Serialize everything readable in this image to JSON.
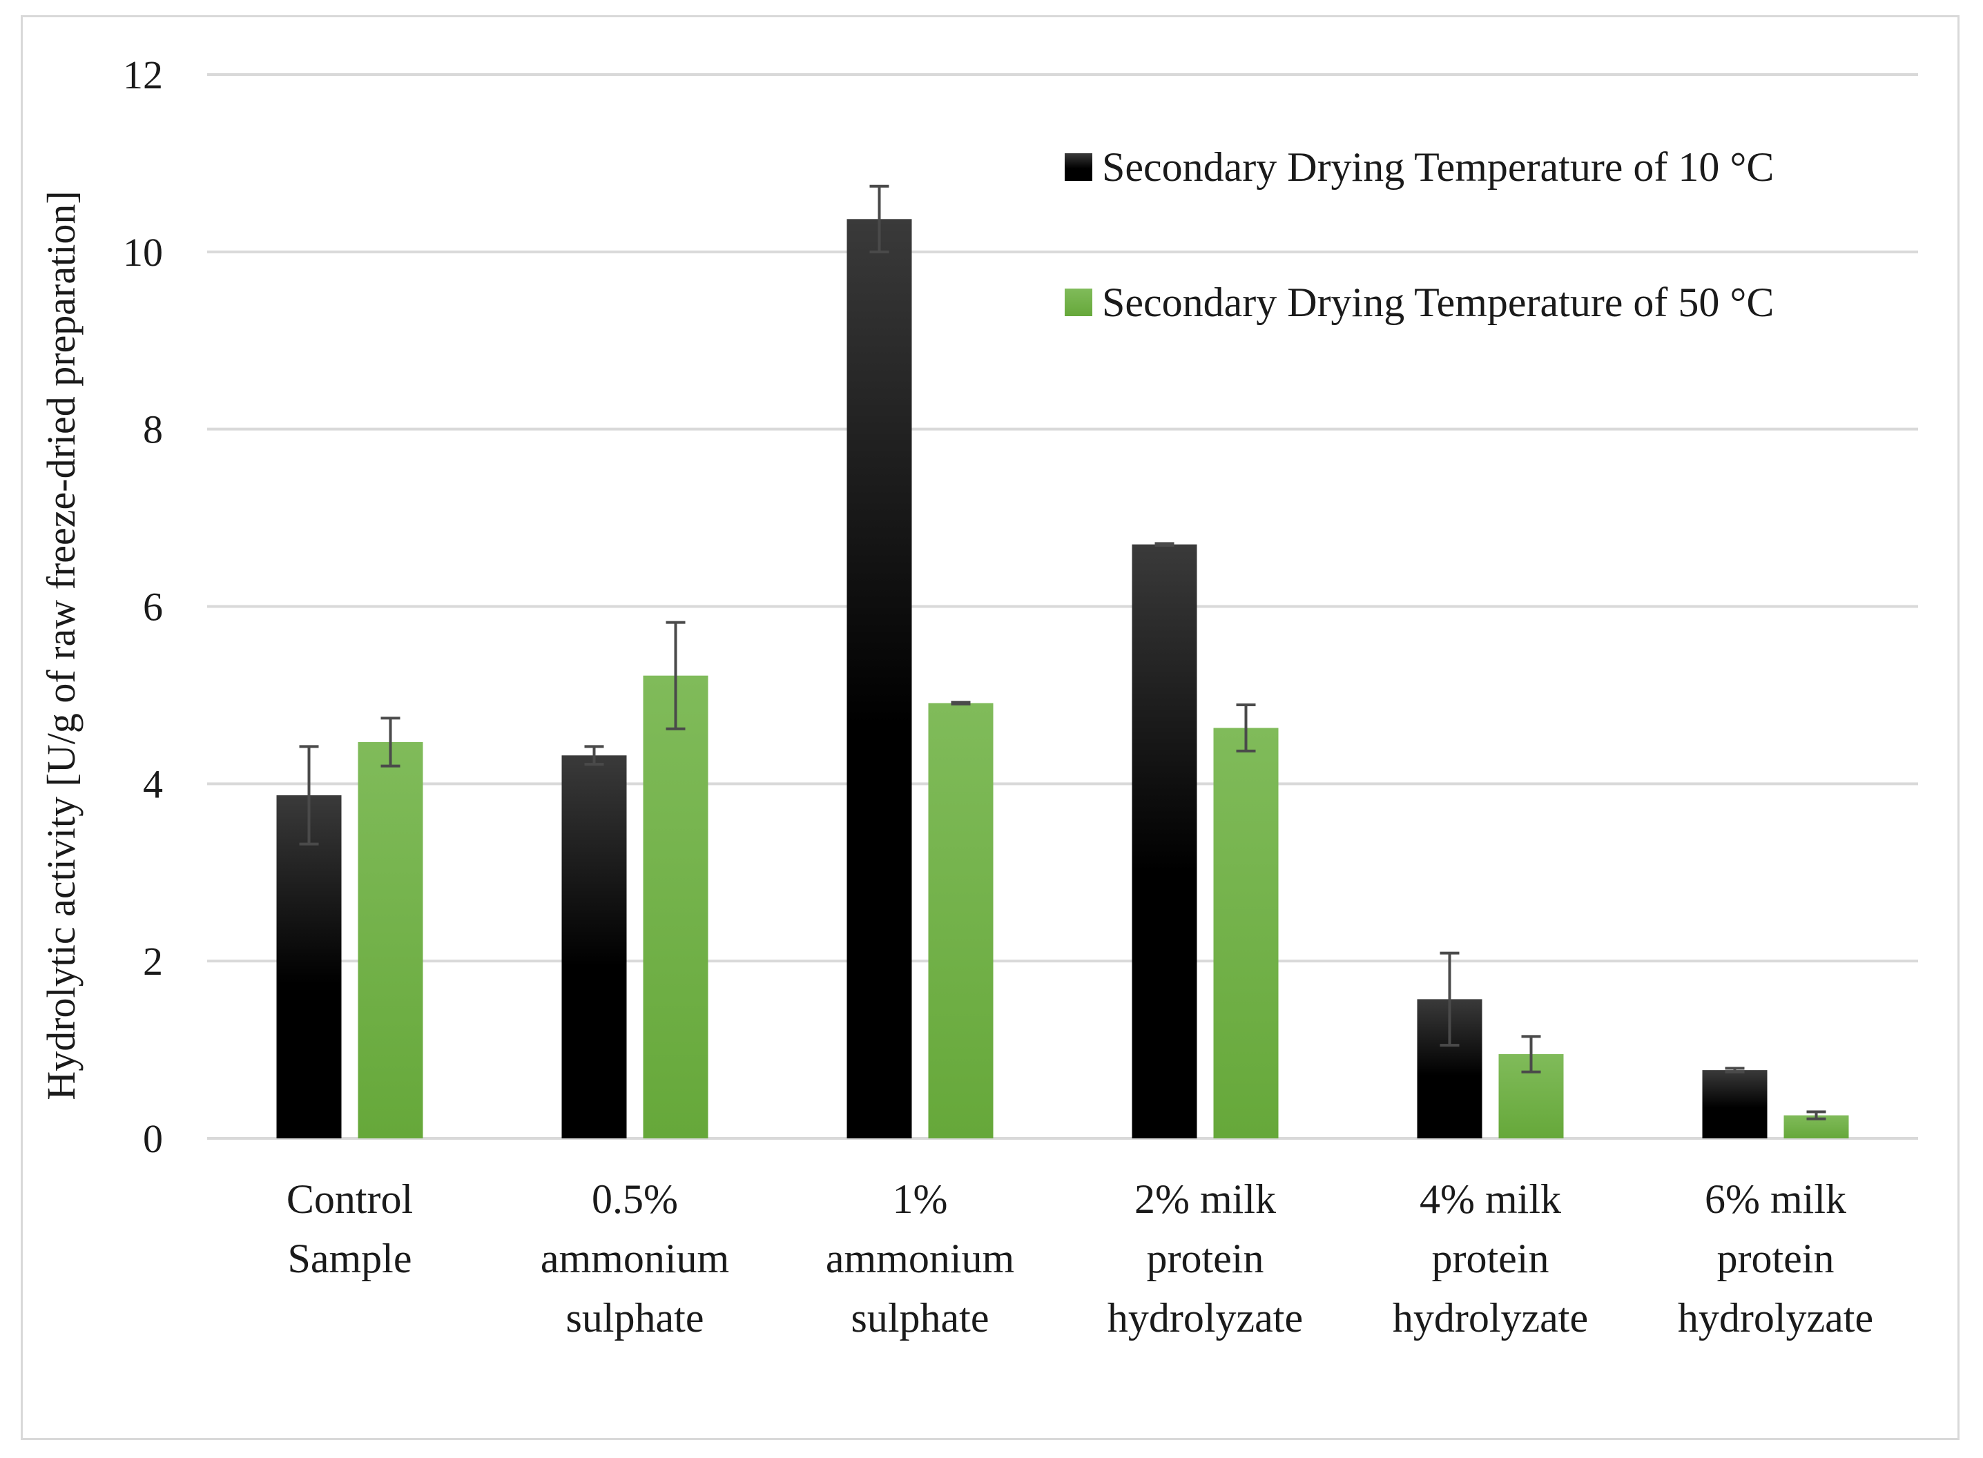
{
  "chart_data": {
    "type": "bar",
    "title": "",
    "xlabel": "",
    "ylabel": "Hydrolytic activity [U/g of raw freeze-dried preparation]",
    "ylim": [
      0,
      12
    ],
    "yticks": [
      0,
      2,
      4,
      6,
      8,
      10,
      12
    ],
    "grid": true,
    "legend_position": "top-right",
    "categories": [
      [
        "Control",
        "Sample"
      ],
      [
        "0.5%",
        "ammonium",
        "sulphate"
      ],
      [
        "1%",
        "ammonium",
        "sulphate"
      ],
      [
        "2% milk",
        "protein",
        "hydrolyzate"
      ],
      [
        "4% milk",
        "protein",
        "hydrolyzate"
      ],
      [
        "6% milk",
        "protein",
        "hydrolyzate"
      ]
    ],
    "series": [
      {
        "name": "Secondary Drying Temperature of 10 °C",
        "color": "#000000",
        "color_top": "#3a3a3a",
        "values": [
          3.87,
          4.32,
          10.37,
          6.7,
          1.57,
          0.77
        ],
        "errors": [
          0.55,
          0.1,
          0.37,
          0.01,
          0.52,
          0.02
        ]
      },
      {
        "name": "Secondary Drying Temperature of 50 °C",
        "color": "#6aab3a",
        "color_top": "#7fbb58",
        "values": [
          4.47,
          5.22,
          4.91,
          4.63,
          0.95,
          0.26
        ],
        "errors": [
          0.27,
          0.6,
          0.01,
          0.26,
          0.2,
          0.04
        ]
      }
    ]
  }
}
